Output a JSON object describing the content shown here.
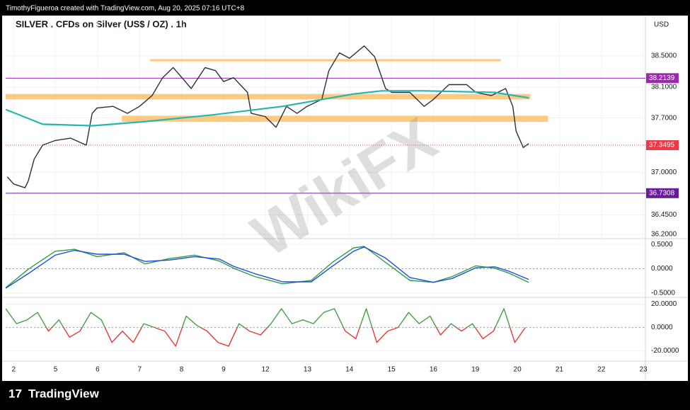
{
  "header": {
    "credit": "TimothyFigueroa created with TradingView.com, Aug 20, 2025 07:16 UTC+8",
    "title": "SILVER . CFDs on Silver (US$ / OZ) . 1h",
    "currency": "USD"
  },
  "watermark": "WikiFX",
  "footer": {
    "brand": "TradingView"
  },
  "chart_data": [
    {
      "type": "line",
      "grid": true,
      "xlim": [
        -0.19,
        15.05
      ],
      "ylim": [
        36.145,
        38.993
      ],
      "xticks": [
        {
          "value": 0,
          "label": "2"
        },
        {
          "value": 1,
          "label": "5"
        },
        {
          "value": 2,
          "label": "6"
        },
        {
          "value": 3,
          "label": "7"
        },
        {
          "value": 4,
          "label": "8"
        },
        {
          "value": 5,
          "label": "9"
        },
        {
          "value": 6,
          "label": "12"
        },
        {
          "value": 7,
          "label": "13"
        },
        {
          "value": 8,
          "label": "14"
        },
        {
          "value": 9,
          "label": "15"
        },
        {
          "value": 10,
          "label": "16"
        },
        {
          "value": 11,
          "label": "19"
        },
        {
          "value": 12,
          "label": "20"
        },
        {
          "value": 13,
          "label": "21"
        },
        {
          "value": 14,
          "label": "22"
        },
        {
          "value": 15,
          "label": "23"
        }
      ],
      "yticks": [
        {
          "value": 38.5,
          "label": "38.5000"
        },
        {
          "value": 38.1,
          "label": "38.1000"
        },
        {
          "value": 37.7,
          "label": "37.7000"
        },
        {
          "value": 37.0,
          "label": "37.0000"
        },
        {
          "value": 36.45,
          "label": "36.4500"
        },
        {
          "value": 36.2,
          "label": "36.2000"
        }
      ],
      "series": [
        {
          "color": "#2b2f3a",
          "x": [
            -0.15,
            0,
            0.27,
            0.35,
            0.49,
            0.69,
            0.99,
            1.36,
            1.73,
            1.87,
            1.99,
            2.37,
            2.71,
            3.0,
            3.3,
            3.55,
            3.8,
            4.01,
            4.23,
            4.56,
            4.81,
            5.0,
            5.24,
            5.57,
            5.66,
            5.99,
            6.25,
            6.5,
            6.75,
            6.99,
            7.34,
            7.51,
            7.76,
            8.0,
            8.35,
            8.6,
            8.86,
            9.01,
            9.44,
            9.78,
            10.0,
            10.37,
            10.79,
            11.01,
            11.38,
            11.72,
            11.89,
            11.97,
            12.14,
            12.27
          ],
          "values": [
            36.94,
            36.85,
            36.8,
            36.89,
            37.17,
            37.35,
            37.41,
            37.44,
            37.35,
            37.76,
            37.83,
            37.85,
            37.76,
            37.85,
            37.99,
            38.22,
            38.35,
            38.22,
            38.08,
            38.35,
            38.31,
            38.17,
            38.22,
            38.03,
            37.76,
            37.72,
            37.58,
            37.85,
            37.76,
            37.85,
            37.94,
            38.31,
            38.54,
            38.47,
            38.63,
            38.49,
            38.08,
            38.03,
            38.03,
            37.85,
            37.94,
            38.13,
            38.13,
            38.03,
            37.99,
            38.08,
            37.85,
            37.53,
            37.32,
            37.37
          ]
        },
        {
          "color": "#26b5b0",
          "x": [
            -0.19,
            0.69,
            1.87,
            3.05,
            4.73,
            6.41,
            8.1,
            8.77,
            9.78,
            11.46,
            12.27
          ],
          "values": [
            37.81,
            37.62,
            37.6,
            37.65,
            37.74,
            37.85,
            38.01,
            38.05,
            38.05,
            38.03,
            37.96
          ]
        }
      ],
      "zone_color": "#fbc16a",
      "zones": [
        {
          "from": 38.43,
          "to": 38.46,
          "x": [
            3.25,
            11.6
          ]
        },
        {
          "from": 37.94,
          "to": 38.01,
          "x": [
            -0.19,
            12.31
          ]
        },
        {
          "from": 37.65,
          "to": 37.73,
          "x": [
            2.58,
            12.73
          ]
        }
      ],
      "levels": [
        {
          "value": 38.2139,
          "label": "38.2139",
          "color": "#9c27b0"
        },
        {
          "value": 36.7308,
          "label": "36.7308",
          "color": "#6a1b9a"
        }
      ],
      "last_price": {
        "value": 37.3495,
        "label": "37.3495",
        "color": "#f23645"
      }
    },
    {
      "type": "line",
      "xlim": [
        -0.19,
        15.05
      ],
      "ylim": [
        -0.59,
        0.62
      ],
      "yticks": [
        {
          "value": 0.5,
          "label": "0.5000"
        },
        {
          "value": 0,
          "label": "0.0000"
        },
        {
          "value": -0.5,
          "label": "-0.5000"
        }
      ],
      "series": [
        {
          "color": "#2e9e46",
          "x": [
            -0.19,
            0.35,
            0.99,
            1.45,
            1.99,
            2.63,
            3.13,
            3.72,
            4.31,
            4.9,
            5.24,
            5.74,
            6.41,
            7.09,
            7.59,
            8.1,
            8.35,
            8.86,
            9.44,
            10.0,
            10.45,
            11.01,
            11.46,
            11.8,
            12.27
          ],
          "values": [
            -0.39,
            -0.01,
            0.36,
            0.4,
            0.25,
            0.33,
            0.1,
            0.21,
            0.28,
            0.16,
            0.01,
            -0.16,
            -0.31,
            -0.24,
            0.13,
            0.43,
            0.46,
            0.13,
            -0.24,
            -0.28,
            -0.16,
            0.06,
            0.01,
            -0.09,
            -0.28
          ]
        },
        {
          "color": "#1e4fd8",
          "x": [
            -0.19,
            0.35,
            0.99,
            1.45,
            1.99,
            2.63,
            3.13,
            3.72,
            4.31,
            4.9,
            5.24,
            5.74,
            6.41,
            7.09,
            7.59,
            8.1,
            8.35,
            8.86,
            9.44,
            10.0,
            10.45,
            11.01,
            11.46,
            11.8,
            12.27
          ],
          "values": [
            -0.4,
            -0.1,
            0.28,
            0.38,
            0.3,
            0.3,
            0.15,
            0.18,
            0.25,
            0.2,
            0.05,
            -0.1,
            -0.27,
            -0.27,
            0.05,
            0.36,
            0.45,
            0.22,
            -0.18,
            -0.28,
            -0.2,
            0.02,
            0.04,
            -0.05,
            -0.22
          ]
        }
      ]
    },
    {
      "type": "line",
      "xlim": [
        -0.19,
        15.05
      ],
      "ylim": [
        -29.0,
        25.8
      ],
      "yticks": [
        {
          "value": 20,
          "label": "20.0000"
        },
        {
          "value": 0,
          "label": "0.0000"
        },
        {
          "value": -20,
          "label": "-20.0000"
        }
      ],
      "series": [
        {
          "color": "#43a047",
          "color_below": "#e53935",
          "x": [
            -0.19,
            0.07,
            0.32,
            0.57,
            0.83,
            1.08,
            1.33,
            1.58,
            1.84,
            2.09,
            2.34,
            2.59,
            2.85,
            3.1,
            3.35,
            3.6,
            3.86,
            4.11,
            4.36,
            4.61,
            4.87,
            5.12,
            5.37,
            5.62,
            5.88,
            6.13,
            6.38,
            6.63,
            6.89,
            7.14,
            7.39,
            7.64,
            7.9,
            8.15,
            8.4,
            8.65,
            8.91,
            9.16,
            9.41,
            9.66,
            9.92,
            10.17,
            10.42,
            10.67,
            10.93,
            11.18,
            11.43,
            11.68,
            11.94,
            12.19
          ],
          "values": [
            16.1,
            3.2,
            6.5,
            12.9,
            -3.2,
            6.5,
            -8.4,
            -3.2,
            12.9,
            6.5,
            -12.9,
            -3.2,
            -12.9,
            3.2,
            0,
            -3.2,
            -16.1,
            9.7,
            1.9,
            -3.2,
            -12.9,
            -16.1,
            3.2,
            -3.2,
            -6.5,
            3.2,
            16.1,
            3.2,
            6.5,
            3.2,
            12.9,
            16.1,
            -3.2,
            -9.7,
            16.1,
            -12.9,
            -3.2,
            0,
            12.9,
            3.2,
            9.7,
            -6.5,
            3.2,
            -3.2,
            3.2,
            -9.7,
            -3.2,
            16.1,
            -12.9,
            0
          ]
        }
      ]
    }
  ]
}
